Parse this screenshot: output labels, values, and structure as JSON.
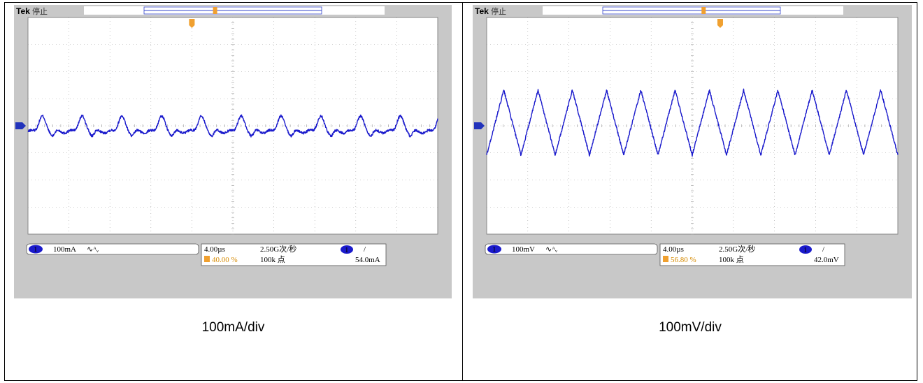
{
  "panels": [
    {
      "id": "left",
      "brand": "Tek",
      "status": "停止",
      "caption": "100mA/div",
      "readouts": {
        "channel_marker": "1",
        "channel_scale": "100mA",
        "coupling": "∿ᴬᵥ",
        "timebase": "4.00µs",
        "trigger_position": "40.00 %",
        "sample_rate": "2.50G次/秒",
        "record_length": "100k 点",
        "trigger_channel": "1",
        "trigger_slope": "/",
        "trigger_level": "54.0mA"
      },
      "chart_data": {
        "type": "line",
        "title": "",
        "xlabel": "",
        "ylabel": "",
        "x_unit": "div",
        "y_unit": "div",
        "xlim": [
          0,
          10
        ],
        "ylim": [
          -4,
          4
        ],
        "grid": true,
        "series": [
          {
            "color": "#1a1acc",
            "cycles": 10.3,
            "offset_div": -0.06,
            "amplitude_div": 0.35,
            "shape": "peaked",
            "x_start_div": 0,
            "x_end_div": 10
          }
        ]
      }
    },
    {
      "id": "right",
      "brand": "Tek",
      "status": "停止",
      "caption": "100mV/div",
      "readouts": {
        "channel_marker": "1",
        "channel_scale": "100mV",
        "coupling": "∿ᴬᵥ",
        "timebase": "4.00µs",
        "trigger_position": "56.80 %",
        "sample_rate": "2.50G次/秒",
        "record_length": "100k 点",
        "trigger_channel": "1",
        "trigger_slope": "/",
        "trigger_level": "42.0mV"
      },
      "chart_data": {
        "type": "line",
        "title": "",
        "xlabel": "",
        "ylabel": "",
        "x_unit": "div",
        "y_unit": "div",
        "xlim": [
          0,
          10
        ],
        "ylim": [
          -4,
          4
        ],
        "grid": true,
        "series": [
          {
            "color": "#1a1acc",
            "cycles": 12.0,
            "offset_div": 0.12,
            "amplitude_div": 1.2,
            "shape": "triangle",
            "x_start_div": 0,
            "x_end_div": 10
          }
        ]
      }
    }
  ],
  "colors": {
    "trace": "#1a1acc",
    "trigger": "#f0a030",
    "screen_bg": "#ffffff",
    "bezel": "#c8c8c8"
  }
}
